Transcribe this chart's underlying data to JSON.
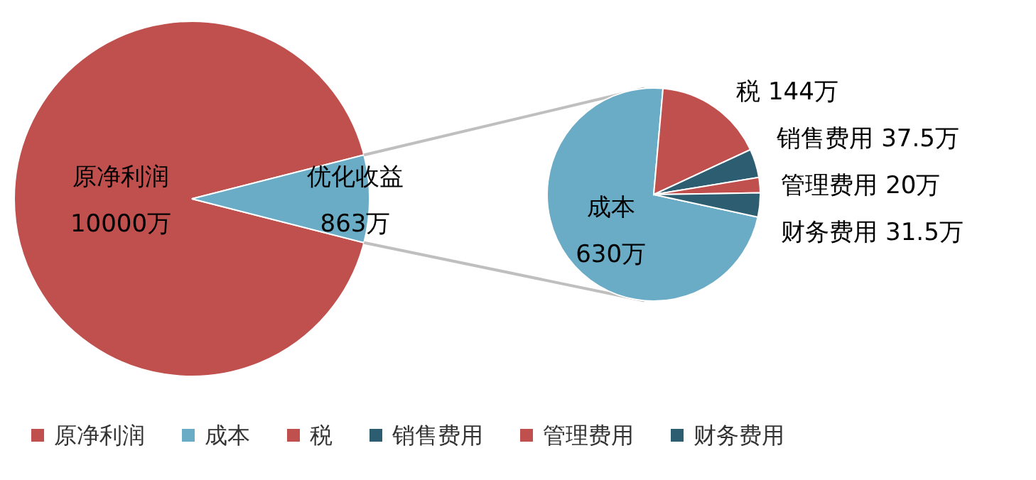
{
  "chart_data": [
    {
      "type": "pie",
      "categories": [
        "原净利润",
        "优化收益"
      ],
      "values": [
        10000,
        863
      ],
      "value_labels": [
        "10000万",
        "863万"
      ],
      "colors": [
        "#c0504d",
        "#6aabc6"
      ],
      "legend": "bottom"
    },
    {
      "type": "pie",
      "categories": [
        "成本",
        "税",
        "销售费用",
        "管理费用",
        "财务费用"
      ],
      "values": [
        630,
        144,
        37.5,
        20,
        31.5
      ],
      "value_labels": [
        "630万",
        "144万",
        "37.5万",
        "20万",
        "31.5万"
      ],
      "colors": [
        "#6aabc6",
        "#c0504d",
        "#2c5d71",
        "#c0504d",
        "#2c5d71"
      ],
      "legend": "bottom"
    }
  ]
}
